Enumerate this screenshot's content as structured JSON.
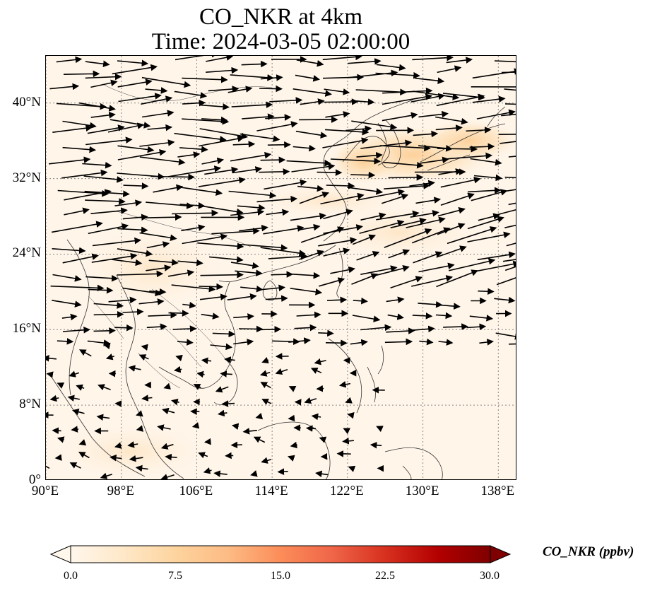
{
  "map": {
    "title_line1": "CO_NKR at 4km",
    "title_line2": "Time: 2024-03-05 02:00:00",
    "lat_ticks": [
      "40°N",
      "32°N",
      "24°N",
      "16°N",
      "8°N",
      "0°"
    ],
    "lon_ticks": [
      "90°E",
      "98°E",
      "106°E",
      "114°E",
      "122°E",
      "130°E",
      "138°E"
    ],
    "extent": {
      "lon": [
        90,
        140
      ],
      "lat": [
        0,
        45
      ]
    },
    "gridlines": true
  },
  "colorbar": {
    "label": "CO_NKR (ppbv)",
    "ticks": [
      "0.0",
      "7.5",
      "15.0",
      "22.5",
      "30.0"
    ],
    "range": [
      0,
      30
    ],
    "colormap": "OrRd",
    "colors": [
      "#fff7ec",
      "#fee8c8",
      "#fdd49e",
      "#fdbb84",
      "#fc8d59",
      "#ef6548",
      "#d7301f",
      "#b30000",
      "#7f0000"
    ]
  }
}
